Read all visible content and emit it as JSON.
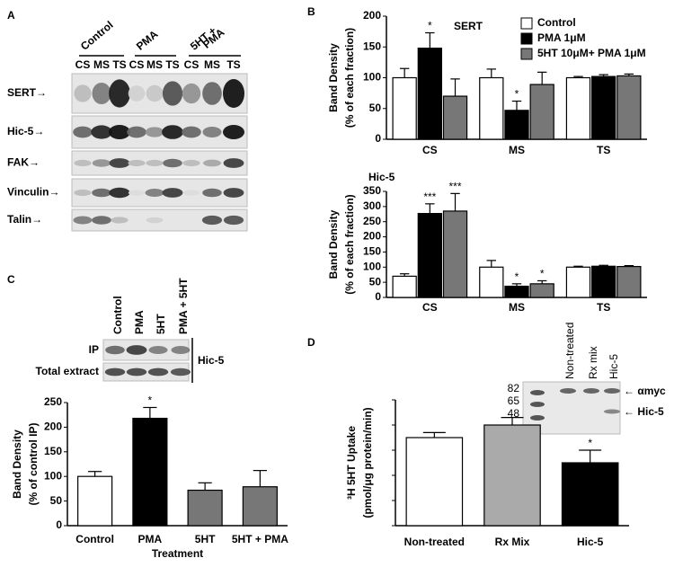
{
  "panel_labels": [
    "A",
    "B",
    "C",
    "D"
  ],
  "blot_a": {
    "groups": [
      [
        "Control"
      ],
      [
        "PMA"
      ],
      [
        "5HT +",
        "PMA"
      ]
    ],
    "lanes": [
      "CS",
      "MS",
      "TS",
      "CS",
      "MS",
      "TS",
      "CS",
      "MS",
      "TS"
    ],
    "rows": [
      "SERT→",
      "Hic-5→",
      "FAK→",
      "Vinculin→",
      "Talin→"
    ]
  },
  "blot_c": {
    "lanes": [
      "Control",
      "PMA",
      "5HT",
      "PMA + 5HT"
    ],
    "rows": [
      "IP",
      "Total extract"
    ],
    "target": "Hic-5"
  },
  "blot_d": {
    "lanes": [
      "Non-treated",
      "Rx mix",
      "Hic-5"
    ],
    "markers": [
      "82",
      "65",
      "48"
    ],
    "labels": [
      "← αmyc",
      "← Hic-5"
    ]
  },
  "chart_data": [
    {
      "type": "bar",
      "title": "SERT",
      "y_label": [
        "Band Density",
        "(% of each fraction)"
      ],
      "categories": [
        "CS",
        "MS",
        "TS"
      ],
      "series": [
        {
          "name": "Control",
          "color": "#ffffff",
          "values": [
            100,
            100,
            100
          ],
          "errors": [
            15,
            14,
            2
          ],
          "significance": [
            null,
            null,
            null
          ]
        },
        {
          "name": "PMA 1μM",
          "color": "#000000",
          "values": [
            148,
            47,
            102
          ],
          "errors": [
            25,
            15,
            3
          ],
          "significance": [
            "*",
            "*",
            null
          ]
        },
        {
          "name": "5HT 10μM+ PMA 1μM",
          "color": "#777777",
          "values": [
            70,
            89,
            103
          ],
          "errors": [
            28,
            20,
            3
          ],
          "significance": [
            null,
            null,
            null
          ]
        }
      ],
      "ylim": [
        0,
        200
      ],
      "yticks": [
        0,
        50,
        100,
        150,
        200
      ],
      "legend": "top-right"
    },
    {
      "type": "bar",
      "title": "Hic-5",
      "y_label": [
        "Band Density",
        "(% of each fraction)"
      ],
      "categories": [
        "CS",
        "MS",
        "TS"
      ],
      "series": [
        {
          "color": "#ffffff",
          "values": [
            70,
            100,
            100
          ],
          "errors": [
            8,
            22,
            3
          ],
          "significance": [
            null,
            null,
            null
          ]
        },
        {
          "color": "#000000",
          "values": [
            277,
            37,
            103
          ],
          "errors": [
            32,
            8,
            3
          ],
          "significance": [
            "***",
            "*",
            null
          ]
        },
        {
          "color": "#777777",
          "values": [
            285,
            45,
            102
          ],
          "errors": [
            58,
            10,
            3
          ],
          "significance": [
            "***",
            "*",
            null
          ]
        }
      ],
      "ylim": [
        0,
        350
      ],
      "yticks": [
        0,
        50,
        100,
        150,
        200,
        250,
        300,
        350
      ]
    },
    {
      "type": "bar",
      "y_label": [
        "Band Density",
        "(% of control IP)"
      ],
      "x_label": "Treatment",
      "categories": [
        "Control",
        "PMA",
        "5HT",
        "5HT + PMA"
      ],
      "values": [
        100,
        218,
        72,
        79
      ],
      "errors": [
        10,
        22,
        15,
        33
      ],
      "significance": [
        null,
        "*",
        null,
        null
      ],
      "colors": [
        "#ffffff",
        "#000000",
        "#777777",
        "#777777"
      ],
      "ylim": [
        0,
        250
      ],
      "yticks": [
        0,
        50,
        100,
        150,
        200,
        250
      ]
    },
    {
      "type": "bar",
      "y_label": [
        "³H 5HT Uptake",
        "(pmol/μg protein/min)"
      ],
      "categories": [
        "Non-treated",
        "Rx Mix",
        "Hic-5"
      ],
      "values": [
        3.5,
        4.0,
        2.5
      ],
      "errors": [
        0.2,
        0.3,
        0.5
      ],
      "significance": [
        null,
        null,
        "*"
      ],
      "colors": [
        "#ffffff",
        "#aaaaaa",
        "#000000"
      ],
      "ylim": [
        0,
        5
      ],
      "yticks": [
        0,
        1,
        2,
        3,
        4,
        5
      ],
      "show_tick_labels": false
    }
  ]
}
